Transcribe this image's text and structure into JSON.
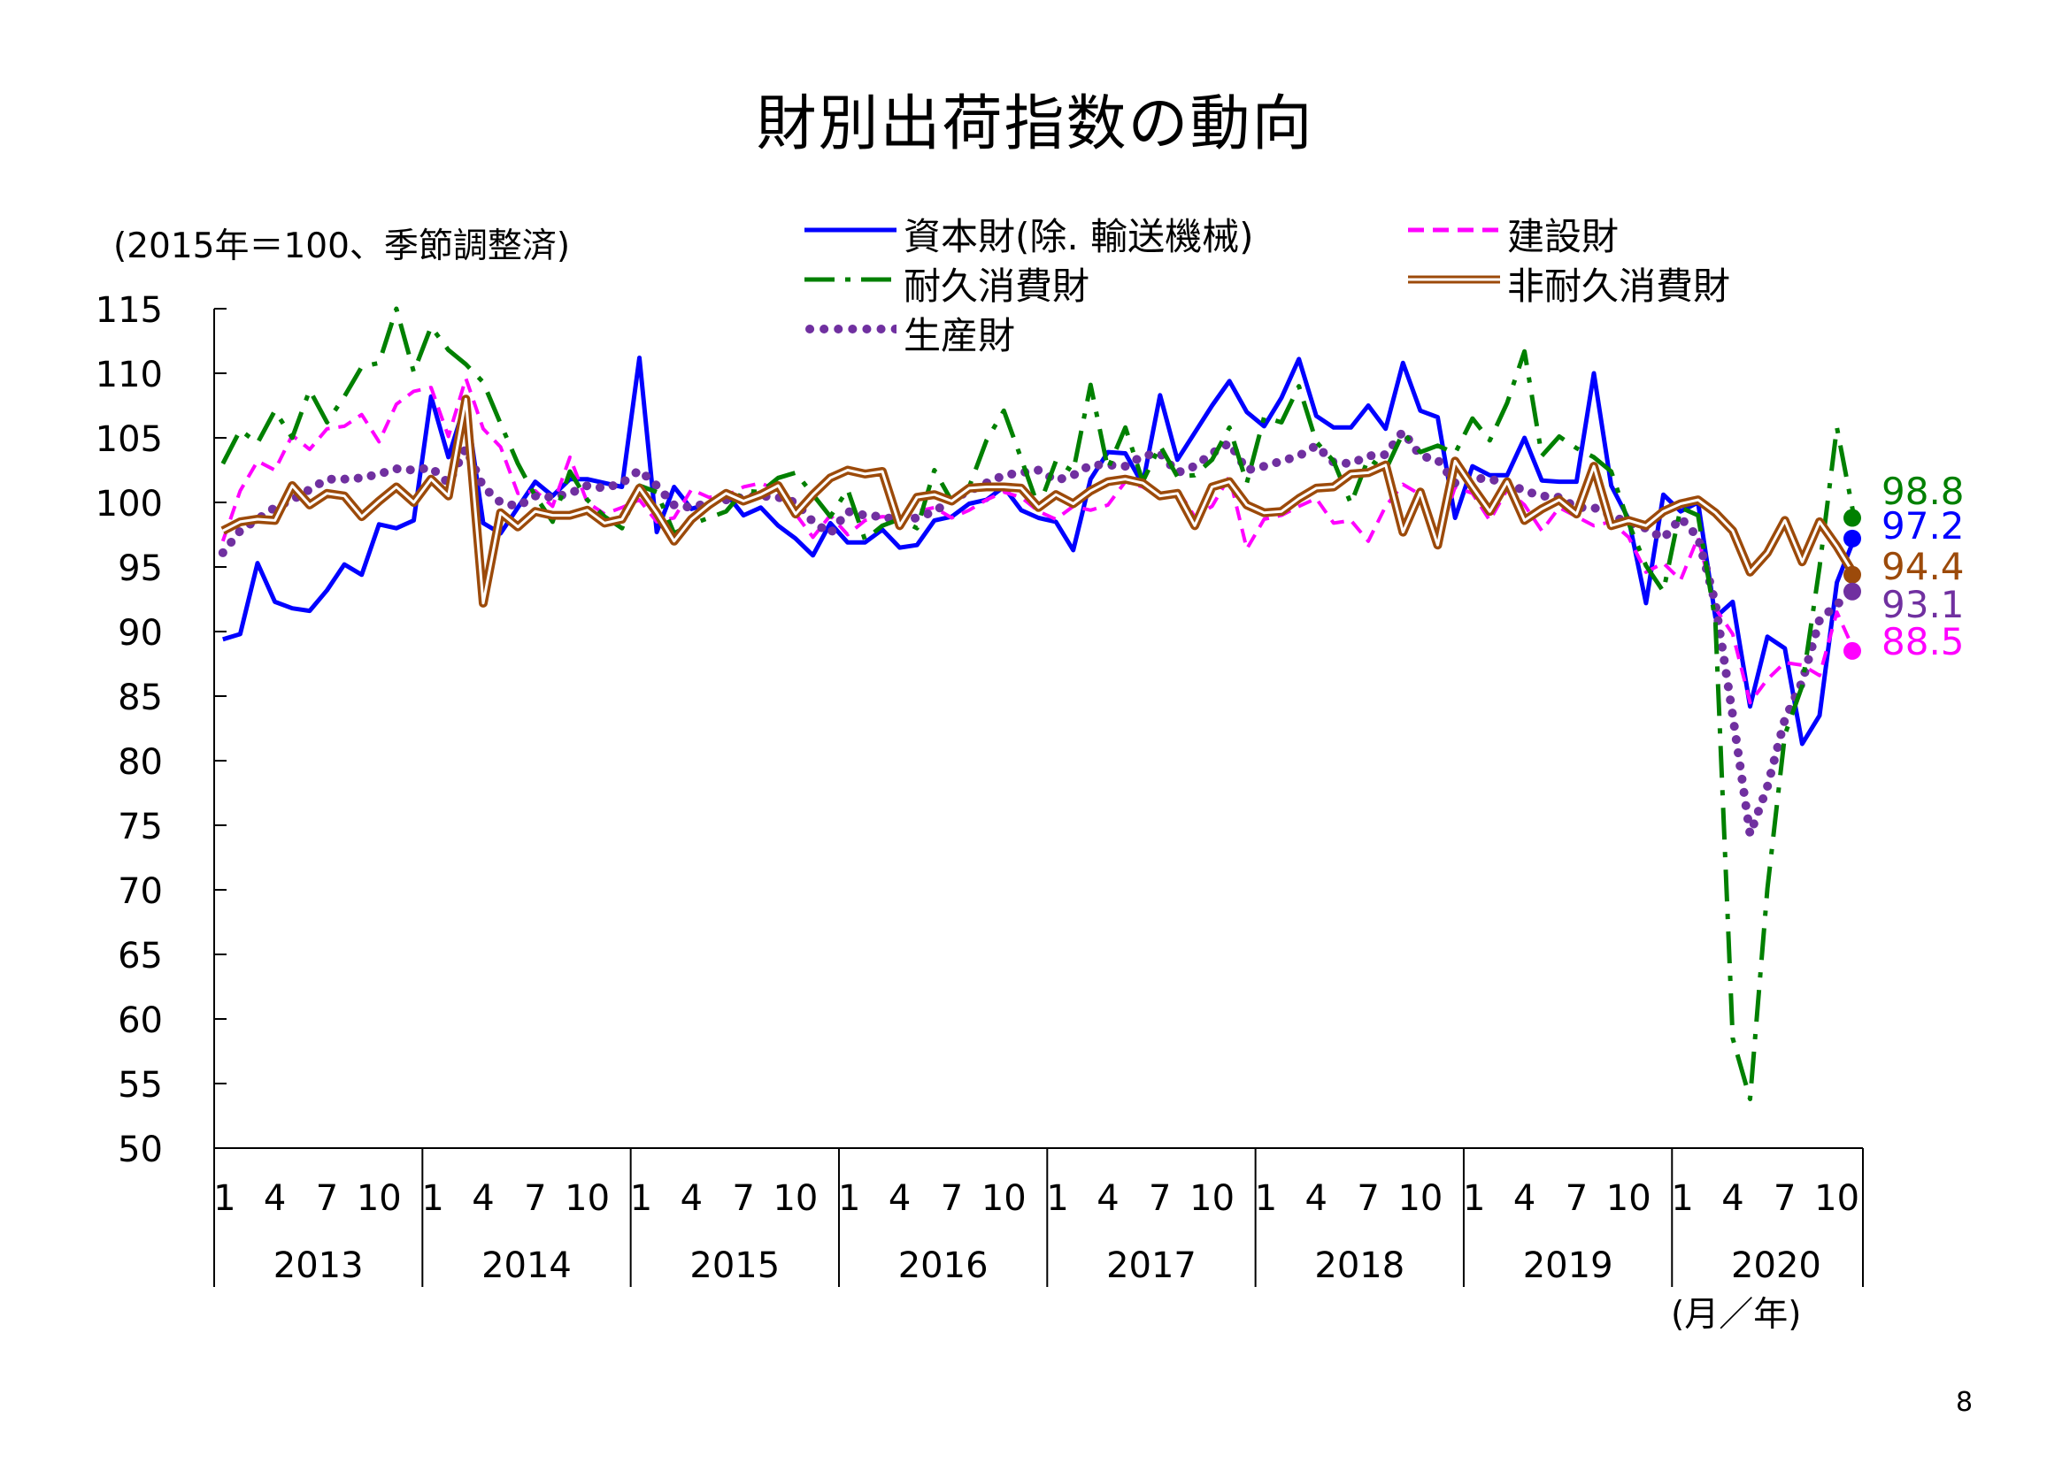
{
  "page_number": "8",
  "chart_data": {
    "type": "line",
    "title": "財別出荷指数の動向",
    "ylabel": "(2015年＝100、季節調整済)",
    "xlabel": "(月／年)",
    "ylim": [
      50,
      115
    ],
    "yticks": [
      115,
      110,
      105,
      100,
      95,
      90,
      85,
      80,
      75,
      70,
      65,
      60,
      55,
      50
    ],
    "month_ticks": [
      "1",
      "4",
      "7",
      "10"
    ],
    "years": [
      "2013",
      "2014",
      "2015",
      "2016",
      "2017",
      "2018",
      "2019",
      "2020"
    ],
    "grid": false,
    "legend_position": "top",
    "series": [
      {
        "name": "資本財(除. 輸送機械)",
        "color": "#0000ff",
        "style": "solid",
        "end_label": "97.2",
        "values": [
          89.4,
          89.8,
          95.3,
          92.3,
          91.8,
          91.6,
          93.2,
          95.2,
          94.4,
          98.3,
          98.0,
          98.6,
          108.2,
          103.5,
          107.8,
          98.4,
          97.6,
          99.6,
          101.6,
          100.5,
          101.8,
          101.8,
          101.5,
          101.2,
          111.2,
          97.7,
          101.2,
          99.5,
          99.9,
          100.7,
          99.0,
          99.6,
          98.2,
          97.2,
          95.9,
          98.4,
          96.9,
          96.9,
          97.9,
          96.5,
          96.7,
          98.6,
          98.9,
          99.9,
          100.2,
          101.2,
          99.4,
          98.8,
          98.5,
          96.3,
          101.8,
          103.9,
          103.8,
          101.4,
          108.3,
          103.3,
          105.4,
          107.5,
          109.4,
          107.0,
          105.9,
          108.1,
          111.1,
          106.7,
          105.8,
          105.8,
          107.5,
          105.7,
          110.8,
          107.1,
          106.6,
          98.8,
          102.8,
          102.1,
          102.1,
          105.0,
          101.7,
          101.6,
          101.6,
          110.0,
          101.3,
          98.7,
          92.2,
          100.6,
          99.3,
          100.0,
          91.1,
          92.3,
          84.2,
          89.6,
          88.7,
          81.3,
          83.5,
          93.8,
          97.2
        ]
      },
      {
        "name": "建設財",
        "color": "#ff00ff",
        "style": "dash",
        "end_label": "88.5",
        "values": [
          97.0,
          100.9,
          103.2,
          102.5,
          105.2,
          104.1,
          105.7,
          105.9,
          106.8,
          104.7,
          107.6,
          108.6,
          108.9,
          105.1,
          109.6,
          105.7,
          104.3,
          100.7,
          100.9,
          99.7,
          103.5,
          100.0,
          99.1,
          99.6,
          100.2,
          98.5,
          98.8,
          101.0,
          100.4,
          100.5,
          101.2,
          101.5,
          100.9,
          99.1,
          97.3,
          99.0,
          97.5,
          98.6,
          98.9,
          98.8,
          99.3,
          99.6,
          98.8,
          99.4,
          100.2,
          100.8,
          100.4,
          99.3,
          98.7,
          99.7,
          99.4,
          99.8,
          101.6,
          101.2,
          100.4,
          101.0,
          98.9,
          99.7,
          102.0,
          96.4,
          98.7,
          99.0,
          99.7,
          100.3,
          98.4,
          98.6,
          97.0,
          99.7,
          101.4,
          100.6,
          97.0,
          101.2,
          100.7,
          98.6,
          101.0,
          99.8,
          97.8,
          99.6,
          98.9,
          98.2,
          98.5,
          97.3,
          94.6,
          95.3,
          94.0,
          97.3,
          91.8,
          89.8,
          84.5,
          86.3,
          87.6,
          87.4,
          86.6,
          91.5,
          88.5
        ]
      },
      {
        "name": "耐久消費財",
        "color": "#008000",
        "style": "longdash",
        "end_label": "98.8",
        "values": [
          103.0,
          105.6,
          104.6,
          107.1,
          105.0,
          108.7,
          106.2,
          108.2,
          110.5,
          110.8,
          115.0,
          110.1,
          113.6,
          111.8,
          110.7,
          109.3,
          106.1,
          103.0,
          100.5,
          98.5,
          102.4,
          100.2,
          98.9,
          98.0,
          101.3,
          100.8,
          97.6,
          98.3,
          98.8,
          99.3,
          100.9,
          100.8,
          101.9,
          102.3,
          100.6,
          98.9,
          101.0,
          97.1,
          98.2,
          98.7,
          98.0,
          102.5,
          100.1,
          101.2,
          104.8,
          107.1,
          103.4,
          99.6,
          103.2,
          102.4,
          109.1,
          102.6,
          105.8,
          101.6,
          104.4,
          102.0,
          102.1,
          103.3,
          105.8,
          101.5,
          106.6,
          106.2,
          109.0,
          104.7,
          103.2,
          99.9,
          103.4,
          102.5,
          105.4,
          103.9,
          104.4,
          103.8,
          106.5,
          104.8,
          107.7,
          111.7,
          103.6,
          105.1,
          104.2,
          103.5,
          102.4,
          98.4,
          95.1,
          93.1,
          99.6,
          99.0,
          90.8,
          58.5,
          53.8,
          70.1,
          82.0,
          85.8,
          95.0,
          105.8,
          98.8
        ]
      },
      {
        "name": "非耐久消費財",
        "color": "#9c4a0a",
        "style": "double",
        "end_label": "94.4",
        "values": [
          97.8,
          98.5,
          98.7,
          98.6,
          101.3,
          99.8,
          100.7,
          100.5,
          98.9,
          100.1,
          101.2,
          100.0,
          101.8,
          100.5,
          108.0,
          92.2,
          99.2,
          98.1,
          99.3,
          99.0,
          99.0,
          99.4,
          98.4,
          98.7,
          101.1,
          99.2,
          97.0,
          98.7,
          99.8,
          100.7,
          100.1,
          100.6,
          101.3,
          99.1,
          100.6,
          101.9,
          102.5,
          102.2,
          102.4,
          98.2,
          100.4,
          100.6,
          100.1,
          101.1,
          101.2,
          101.2,
          101.1,
          99.6,
          100.6,
          99.9,
          100.9,
          101.6,
          101.8,
          101.5,
          100.5,
          100.7,
          98.2,
          101.2,
          101.6,
          99.8,
          99.2,
          99.3,
          100.3,
          101.1,
          101.2,
          102.2,
          102.3,
          102.9,
          97.7,
          100.8,
          96.7,
          103.2,
          101.2,
          99.3,
          101.6,
          98.6,
          99.5,
          100.2,
          99.1,
          102.8,
          98.2,
          98.6,
          98.2,
          99.3,
          99.9,
          100.2,
          99.2,
          97.8,
          94.6,
          96.1,
          98.6,
          95.4,
          98.5,
          96.6,
          94.4
        ]
      },
      {
        "name": "生産財",
        "color": "#7030a0",
        "style": "dot",
        "end_label": "93.1",
        "values": [
          96.1,
          97.8,
          98.7,
          99.6,
          100.2,
          101.0,
          101.8,
          101.8,
          101.9,
          102.2,
          102.6,
          102.5,
          102.7,
          101.5,
          104.2,
          101.2,
          100.0,
          99.7,
          100.5,
          100.4,
          100.7,
          101.3,
          101.1,
          101.5,
          102.5,
          101.3,
          99.8,
          99.6,
          100.0,
          100.2,
          100.4,
          100.5,
          100.4,
          100.0,
          98.5,
          97.6,
          99.3,
          99.0,
          98.9,
          98.6,
          98.8,
          99.3,
          100.2,
          100.9,
          101.5,
          102.1,
          102.3,
          102.5,
          101.7,
          102.1,
          102.9,
          102.9,
          102.8,
          103.6,
          103.8,
          102.3,
          102.8,
          103.8,
          104.6,
          102.5,
          102.8,
          103.2,
          103.6,
          104.4,
          103.1,
          103.0,
          103.6,
          103.7,
          105.5,
          103.6,
          103.3,
          101.5,
          101.9,
          101.8,
          101.5,
          100.9,
          100.5,
          100.4,
          99.6,
          99.6,
          99.0,
          98.4,
          98.0,
          97.2,
          98.8,
          97.3,
          92.2,
          83.5,
          74.3,
          78.0,
          83.2,
          86.1,
          90.9,
          92.1,
          93.1
        ]
      }
    ]
  }
}
